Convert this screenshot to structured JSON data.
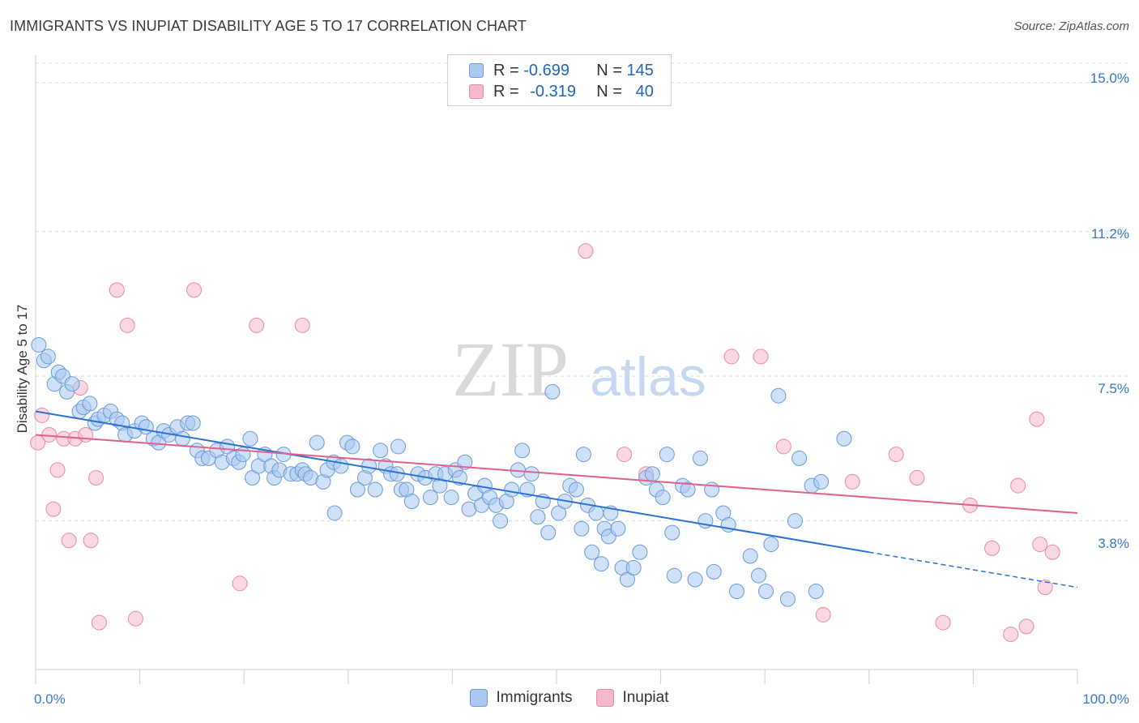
{
  "header": {
    "title": "IMMIGRANTS VS INUPIAT DISABILITY AGE 5 TO 17 CORRELATION CHART",
    "source": "Source: ZipAtlas.com"
  },
  "legend": {
    "rows": [
      {
        "r_label": "R =",
        "r_value": "-0.699",
        "n_label": "N =",
        "n_value": "145"
      },
      {
        "r_label": "R =",
        "r_value": "-0.319",
        "n_label": "N =",
        "n_value": "40"
      }
    ],
    "bottom": [
      "Immigrants",
      "Inupiat"
    ]
  },
  "watermark": {
    "zip": "ZIP",
    "atlas": "atlas"
  },
  "colors": {
    "immigrants_fill": "#aac8f0",
    "immigrants_stroke": "#6a9ad8",
    "immigrants_line": "#2a72d6",
    "inupiat_fill": "#f6b8cc",
    "inupiat_stroke": "#e88aa8",
    "inupiat_line": "#e0608e",
    "tick_label": "#3a78c9"
  },
  "chart_data": {
    "type": "scatter",
    "title": "IMMIGRANTS VS INUPIAT DISABILITY AGE 5 TO 17 CORRELATION CHART",
    "xlabel": "",
    "ylabel": "Disability Age 5 to 17",
    "xlim": [
      0,
      100
    ],
    "ylim": [
      0,
      15.5
    ],
    "x_tick_labels": [
      "0.0%",
      "100.0%"
    ],
    "y_ticks": [
      3.8,
      7.5,
      11.2,
      15.0
    ],
    "y_tick_labels": [
      "3.8%",
      "7.5%",
      "11.2%",
      "15.0%"
    ],
    "grid": true,
    "legend_position": "top-center",
    "series": [
      {
        "name": "Immigrants",
        "trend": {
          "x0": 0,
          "y0": 6.6,
          "x1": 80,
          "y1": 3.0,
          "dashed_to_x": 100,
          "dashed_to_y": 2.1
        },
        "points": [
          [
            0.3,
            8.3
          ],
          [
            0.8,
            7.9
          ],
          [
            1.2,
            8.0
          ],
          [
            1.8,
            7.3
          ],
          [
            2.2,
            7.6
          ],
          [
            2.6,
            7.5
          ],
          [
            3.0,
            7.1
          ],
          [
            3.5,
            7.3
          ],
          [
            4.2,
            6.6
          ],
          [
            4.6,
            6.7
          ],
          [
            5.2,
            6.8
          ],
          [
            5.7,
            6.3
          ],
          [
            6.0,
            6.4
          ],
          [
            6.6,
            6.5
          ],
          [
            7.2,
            6.6
          ],
          [
            7.8,
            6.4
          ],
          [
            8.3,
            6.3
          ],
          [
            8.6,
            6.0
          ],
          [
            9.5,
            6.1
          ],
          [
            10.2,
            6.3
          ],
          [
            10.6,
            6.2
          ],
          [
            11.3,
            5.9
          ],
          [
            11.8,
            5.8
          ],
          [
            12.3,
            6.1
          ],
          [
            12.8,
            6.0
          ],
          [
            13.6,
            6.2
          ],
          [
            14.1,
            5.9
          ],
          [
            14.6,
            6.3
          ],
          [
            15.1,
            6.3
          ],
          [
            15.5,
            5.6
          ],
          [
            16.0,
            5.4
          ],
          [
            16.6,
            5.4
          ],
          [
            17.4,
            5.6
          ],
          [
            17.9,
            5.3
          ],
          [
            18.4,
            5.7
          ],
          [
            19.0,
            5.4
          ],
          [
            19.5,
            5.3
          ],
          [
            19.9,
            5.5
          ],
          [
            20.6,
            5.9
          ],
          [
            20.8,
            4.9
          ],
          [
            21.4,
            5.2
          ],
          [
            22.0,
            5.5
          ],
          [
            22.6,
            5.2
          ],
          [
            22.9,
            4.9
          ],
          [
            23.4,
            5.1
          ],
          [
            23.8,
            5.5
          ],
          [
            24.5,
            5.0
          ],
          [
            25.1,
            5.0
          ],
          [
            25.6,
            5.1
          ],
          [
            25.9,
            5.0
          ],
          [
            26.4,
            4.9
          ],
          [
            27.0,
            5.8
          ],
          [
            27.6,
            4.8
          ],
          [
            28.0,
            5.1
          ],
          [
            28.6,
            5.3
          ],
          [
            29.3,
            5.2
          ],
          [
            29.9,
            5.8
          ],
          [
            30.4,
            5.7
          ],
          [
            30.9,
            4.6
          ],
          [
            31.6,
            4.9
          ],
          [
            32.0,
            5.2
          ],
          [
            32.6,
            4.6
          ],
          [
            33.1,
            5.6
          ],
          [
            33.6,
            5.2
          ],
          [
            34.1,
            5.0
          ],
          [
            34.7,
            5.0
          ],
          [
            35.1,
            4.6
          ],
          [
            35.6,
            4.6
          ],
          [
            36.1,
            4.3
          ],
          [
            36.7,
            5.0
          ],
          [
            37.4,
            4.9
          ],
          [
            37.9,
            4.4
          ],
          [
            38.4,
            5.0
          ],
          [
            38.8,
            4.7
          ],
          [
            39.3,
            5.0
          ],
          [
            39.9,
            4.4
          ],
          [
            40.3,
            5.1
          ],
          [
            40.7,
            4.9
          ],
          [
            41.2,
            5.3
          ],
          [
            41.6,
            4.1
          ],
          [
            42.2,
            4.5
          ],
          [
            42.8,
            4.2
          ],
          [
            43.1,
            4.7
          ],
          [
            43.6,
            4.4
          ],
          [
            44.2,
            4.2
          ],
          [
            44.6,
            3.8
          ],
          [
            45.2,
            4.3
          ],
          [
            45.7,
            4.6
          ],
          [
            46.3,
            5.1
          ],
          [
            46.7,
            5.6
          ],
          [
            47.2,
            4.6
          ],
          [
            47.6,
            5.0
          ],
          [
            48.2,
            3.9
          ],
          [
            48.7,
            4.3
          ],
          [
            49.2,
            3.5
          ],
          [
            49.6,
            7.1
          ],
          [
            50.2,
            4.0
          ],
          [
            50.8,
            4.3
          ],
          [
            51.3,
            4.7
          ],
          [
            51.9,
            4.6
          ],
          [
            52.4,
            3.6
          ],
          [
            52.6,
            5.5
          ],
          [
            53.0,
            4.2
          ],
          [
            53.4,
            3.0
          ],
          [
            53.8,
            4.0
          ],
          [
            54.3,
            2.7
          ],
          [
            54.6,
            3.6
          ],
          [
            55.0,
            3.4
          ],
          [
            55.2,
            4.0
          ],
          [
            55.9,
            3.6
          ],
          [
            56.3,
            2.6
          ],
          [
            56.8,
            2.3
          ],
          [
            57.4,
            2.6
          ],
          [
            58.0,
            3.0
          ],
          [
            58.6,
            4.9
          ],
          [
            59.2,
            5.0
          ],
          [
            59.6,
            4.6
          ],
          [
            60.2,
            4.4
          ],
          [
            60.6,
            5.5
          ],
          [
            61.1,
            3.5
          ],
          [
            62.1,
            4.7
          ],
          [
            62.6,
            4.6
          ],
          [
            63.3,
            2.3
          ],
          [
            63.8,
            5.4
          ],
          [
            64.3,
            3.8
          ],
          [
            64.9,
            4.6
          ],
          [
            65.1,
            2.5
          ],
          [
            66.0,
            4.0
          ],
          [
            67.3,
            2.0
          ],
          [
            68.6,
            2.9
          ],
          [
            69.4,
            2.4
          ],
          [
            70.1,
            2.0
          ],
          [
            70.6,
            3.2
          ],
          [
            71.3,
            7.0
          ],
          [
            72.2,
            1.8
          ],
          [
            72.9,
            3.8
          ],
          [
            73.3,
            5.4
          ],
          [
            74.5,
            4.7
          ],
          [
            74.9,
            2.0
          ],
          [
            75.4,
            4.8
          ],
          [
            77.6,
            5.9
          ],
          [
            61.3,
            2.4
          ],
          [
            66.5,
            3.7
          ],
          [
            28.7,
            4.0
          ],
          [
            34.8,
            5.7
          ]
        ]
      },
      {
        "name": "Inupiat",
        "trend": {
          "x0": 0,
          "y0": 6.0,
          "x1": 100,
          "y1": 4.0
        },
        "points": [
          [
            0.2,
            5.8
          ],
          [
            0.6,
            6.5
          ],
          [
            1.3,
            6.0
          ],
          [
            1.7,
            4.1
          ],
          [
            2.1,
            5.1
          ],
          [
            2.7,
            5.9
          ],
          [
            3.2,
            3.3
          ],
          [
            3.8,
            5.9
          ],
          [
            4.3,
            7.2
          ],
          [
            4.8,
            6.0
          ],
          [
            5.3,
            3.3
          ],
          [
            5.8,
            4.9
          ],
          [
            6.1,
            1.2
          ],
          [
            7.8,
            9.7
          ],
          [
            8.8,
            8.8
          ],
          [
            9.6,
            1.3
          ],
          [
            15.2,
            9.7
          ],
          [
            19.6,
            2.2
          ],
          [
            21.2,
            8.8
          ],
          [
            25.6,
            8.8
          ],
          [
            52.8,
            10.7
          ],
          [
            56.5,
            5.5
          ],
          [
            58.6,
            5.0
          ],
          [
            66.8,
            8.0
          ],
          [
            69.6,
            8.0
          ],
          [
            71.8,
            5.7
          ],
          [
            78.4,
            4.8
          ],
          [
            82.6,
            5.5
          ],
          [
            84.6,
            4.9
          ],
          [
            87.1,
            1.2
          ],
          [
            89.7,
            4.2
          ],
          [
            91.8,
            3.1
          ],
          [
            93.6,
            0.9
          ],
          [
            94.3,
            4.7
          ],
          [
            95.1,
            1.1
          ],
          [
            96.1,
            6.4
          ],
          [
            96.4,
            3.2
          ],
          [
            96.9,
            2.1
          ],
          [
            97.6,
            3.0
          ],
          [
            75.6,
            1.4
          ]
        ]
      }
    ]
  }
}
